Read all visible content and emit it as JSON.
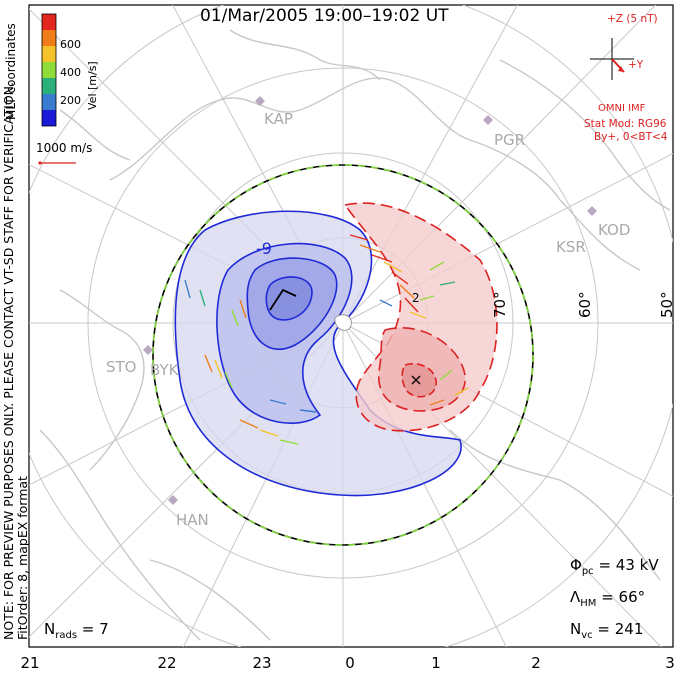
{
  "title": "01/Mar/2005 19:00–19:02 UT",
  "side_note": {
    "line1": "NOTE: FOR PREVIEW PURPOSES ONLY. PLEASE CONTACT VT-SD STAFF FOR VERIFICATION.",
    "line2": "FitOrder: 8, mapEX format",
    "coords": "MLT coordinates"
  },
  "colorbar": {
    "label": "Vel [m/s]",
    "ticks": [
      "600",
      "400",
      "200"
    ],
    "colors": [
      "#e3271e",
      "#f07d1a",
      "#f4c22a",
      "#8fdc3a",
      "#2cb07a",
      "#3a7bd0",
      "#1a1ad8"
    ]
  },
  "scale_label": "1000 m/s",
  "imf": {
    "z_label": "+Z (5 nT)",
    "y_label": "+Y",
    "source": "OMNI IMF",
    "model": "Stat Mod: RG96",
    "condition": "By+, 0<BT<4",
    "color": "#d22"
  },
  "stations": [
    "KAP",
    "PGR",
    "KOD",
    "KSR",
    "STO",
    "BYK",
    "HAN"
  ],
  "lat_labels": [
    "70°",
    "60°",
    "50°"
  ],
  "contour_labels": [
    "-9",
    "2"
  ],
  "stats": {
    "phi_label": "Φ",
    "phi_sub": "pc",
    "phi_value": " = 43 kV",
    "lambda_label": "Λ",
    "lambda_sub": "HM",
    "lambda_value": " = 66°",
    "nvc_label": "N",
    "nvc_sub": "vc",
    "nvc_value": " = 241",
    "nrads_label": "N",
    "nrads_sub": "rads",
    "nrads_value": " = 7"
  },
  "mlt_ticks": [
    "21",
    "22",
    "23",
    "0",
    "1",
    "2",
    "3"
  ]
}
